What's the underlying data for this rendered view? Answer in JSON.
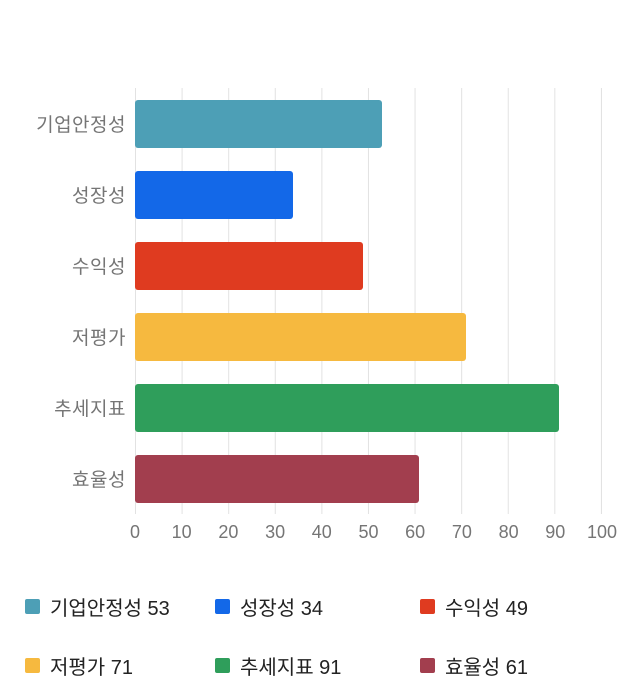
{
  "chart_data": {
    "type": "bar",
    "orientation": "horizontal",
    "title": "",
    "xlabel": "",
    "ylabel": "",
    "categories": [
      "기업안정성",
      "성장성",
      "수익성",
      "저평가",
      "추세지표",
      "효율성"
    ],
    "values": [
      53,
      34,
      49,
      71,
      91,
      61
    ],
    "colors": [
      "#4d9fb6",
      "#1368e8",
      "#df3b20",
      "#f6b93f",
      "#2f9e5b",
      "#a23e4e"
    ],
    "xlim": [
      0,
      100
    ],
    "x_ticks": [
      0,
      10,
      20,
      30,
      40,
      50,
      60,
      70,
      80,
      90,
      100
    ],
    "grid": true,
    "legend_position": "bottom"
  },
  "axis": {
    "tick_labels": [
      "0",
      "10",
      "20",
      "30",
      "40",
      "50",
      "60",
      "70",
      "80",
      "90",
      "100"
    ]
  },
  "legend": {
    "items": [
      {
        "label": "기업안정성 53",
        "color": "#4d9fb6"
      },
      {
        "label": "성장성 34",
        "color": "#1368e8"
      },
      {
        "label": "수익성 49",
        "color": "#df3b20"
      },
      {
        "label": "저평가 71",
        "color": "#f6b93f"
      },
      {
        "label": "추세지표 91",
        "color": "#2f9e5b"
      },
      {
        "label": "효율성 61",
        "color": "#a23e4e"
      }
    ]
  }
}
